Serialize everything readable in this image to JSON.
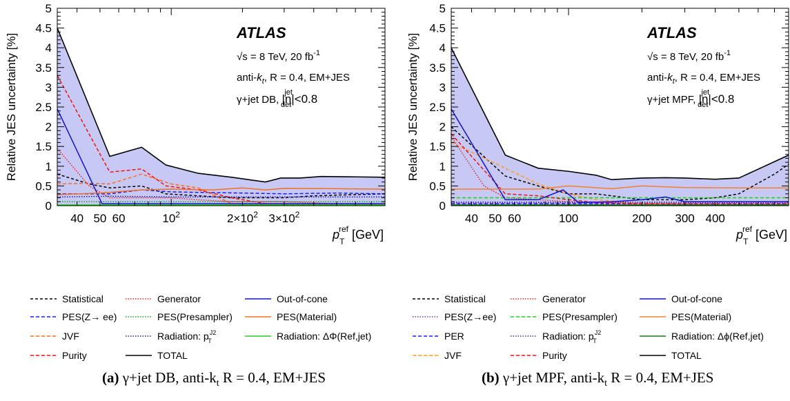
{
  "chart_data": [
    {
      "panel": "a",
      "type": "line",
      "ylabel": "Relative JES uncertainty [%]",
      "xlabel_main": "p",
      "xlabel_sub": "T",
      "xlabel_sup": "ref",
      "xlabel_unit": "[GeV]",
      "xscale": "log",
      "xlim": [
        33,
        800
      ],
      "ylim": [
        0,
        5
      ],
      "yticks": [
        "0",
        "0.5",
        "1",
        "1.5",
        "2",
        "2.5",
        "3",
        "3.5",
        "4",
        "4.5",
        "5"
      ],
      "xticks": [
        {
          "v": 40,
          "label": "40"
        },
        {
          "v": 50,
          "label": "50"
        },
        {
          "v": 60,
          "label": "60"
        },
        {
          "v": 100,
          "label": "10",
          "sup": "2"
        },
        {
          "v": 200,
          "label": "2×10",
          "sup": "2"
        },
        {
          "v": 300,
          "label": "3×10",
          "sup": "2"
        }
      ],
      "annotations": {
        "experiment": "ATLAS",
        "energy": "√s = 8 TeV, 20 fb",
        "lumi_sup": "-1",
        "jet_prefix": "anti-",
        "jet_k": "k",
        "jet_t": "t",
        "jet_rest": ", R = 0.4, EM+JES",
        "method": "γ+jet DB,",
        "eta_sym": "|η",
        "eta_sup": "jet",
        "eta_sub": "det",
        "eta_cut": "|<0.8"
      },
      "series": [
        {
          "name": "TOTAL",
          "color": "#000000",
          "dash": "",
          "fill": true,
          "x": [
            33,
            55,
            75,
            95,
            130,
            180,
            250,
            290,
            350,
            430,
            600,
            800
          ],
          "y": [
            4.5,
            1.25,
            1.48,
            1.03,
            0.82,
            0.72,
            0.6,
            0.7,
            0.7,
            0.74,
            0.73,
            0.72
          ]
        },
        {
          "name": "Statistical",
          "color": "#000000",
          "dash": "4,3",
          "x": [
            33,
            45,
            55,
            75,
            95,
            130,
            180,
            250,
            300,
            400,
            600,
            800
          ],
          "y": [
            0.8,
            0.55,
            0.45,
            0.5,
            0.3,
            0.25,
            0.2,
            0.2,
            0.2,
            0.25,
            0.28,
            0.3
          ]
        },
        {
          "name": "PES(Z→ ee)",
          "color": "#1a1aff",
          "dash": "5,3",
          "x": [
            33,
            55,
            75,
            100,
            150,
            200,
            300,
            500,
            800
          ],
          "y": [
            0.3,
            0.3,
            0.4,
            0.35,
            0.33,
            0.32,
            0.3,
            0.32,
            0.3
          ]
        },
        {
          "name": "JVF",
          "color": "#ff6a1a",
          "dash": "5,3",
          "x": [
            33,
            45,
            55,
            75,
            100,
            130,
            180,
            250,
            400,
            800
          ],
          "y": [
            0.55,
            0.57,
            0.55,
            0.8,
            0.55,
            0.45,
            0.05,
            0.03,
            0.02,
            0.02
          ]
        },
        {
          "name": "Purity",
          "color": "#ee1111",
          "dash": "5,3",
          "x": [
            33,
            55,
            75,
            95,
            130,
            180,
            250,
            400,
            800
          ],
          "y": [
            3.3,
            0.85,
            0.93,
            0.5,
            0.4,
            0.2,
            0.05,
            0.03,
            0.02
          ]
        },
        {
          "name": "Generator",
          "color": "#ee2222",
          "dash": "1.5,2",
          "x": [
            33,
            45,
            55,
            75,
            100,
            130,
            180,
            300,
            500,
            800
          ],
          "y": [
            1.45,
            0.5,
            0.2,
            0.2,
            0.2,
            0.15,
            0.1,
            0.1,
            0.05,
            0.05
          ]
        },
        {
          "name": "PES(Presampler)",
          "color": "#11aa11",
          "dash": "1.5,2",
          "x": [
            33,
            800
          ],
          "y": [
            0.1,
            0.1
          ]
        },
        {
          "name": "Radiation: p",
          "name_sup": "J2",
          "name_sub": "T",
          "color": "#1a1a99",
          "dash": "1.5,2",
          "x": [
            33,
            55,
            100,
            200,
            400,
            800
          ],
          "y": [
            0.22,
            0.24,
            0.22,
            0.22,
            0.22,
            0.22
          ]
        },
        {
          "name": "Out-of-cone",
          "color": "#1111cc",
          "dash": "",
          "x": [
            33,
            51,
            75,
            800
          ],
          "y": [
            2.45,
            0.05,
            0.05,
            0.05
          ]
        },
        {
          "name": "PES(Material)",
          "color": "#f07020",
          "dash": "",
          "x": [
            33,
            50,
            75,
            100,
            150,
            200,
            250,
            300,
            500,
            800
          ],
          "y": [
            0.28,
            0.32,
            0.4,
            0.42,
            0.4,
            0.45,
            0.4,
            0.44,
            0.43,
            0.42
          ]
        },
        {
          "name": "Radiation: ΔΦ(Ref,jet)",
          "color": "#22cc22",
          "dash": "",
          "x": [
            33,
            800
          ],
          "y": [
            0.02,
            0.02
          ]
        }
      ],
      "legend": [
        [
          "Statistical",
          "Generator",
          "Out-of-cone"
        ],
        [
          "PES(Z→ ee)",
          "PES(Presampler)",
          "PES(Material)"
        ],
        [
          "JVF",
          "Radiation: p",
          "Radiation: ΔΦ(Ref,jet)"
        ],
        [
          "Purity",
          "TOTAL"
        ]
      ],
      "caption": {
        "label": "(a)",
        "text": " γ+jet DB, anti-k",
        "sub": "t",
        "rest": " R = 0.4, EM+JES"
      }
    },
    {
      "panel": "b",
      "type": "line",
      "ylabel": "Relative JES uncertainty [%]",
      "xlabel_main": "p",
      "xlabel_sub": "T",
      "xlabel_sup": "ref",
      "xlabel_unit": "[GeV]",
      "xscale": "log",
      "xlim": [
        33,
        800
      ],
      "ylim": [
        0,
        5
      ],
      "yticks": [
        "0",
        "0.5",
        "1",
        "1.5",
        "2",
        "2.5",
        "3",
        "3.5",
        "4",
        "4.5",
        "5"
      ],
      "xticks": [
        {
          "v": 40,
          "label": "40"
        },
        {
          "v": 50,
          "label": "50"
        },
        {
          "v": 60,
          "label": "60"
        },
        {
          "v": 100,
          "label": "100"
        },
        {
          "v": 200,
          "label": "200"
        },
        {
          "v": 300,
          "label": "300"
        },
        {
          "v": 400,
          "label": "400"
        }
      ],
      "annotations": {
        "experiment": "ATLAS",
        "energy": "√s = 8 TeV, 20 fb",
        "lumi_sup": "-1",
        "jet_prefix": "anti-",
        "jet_k": "k",
        "jet_t": "t",
        "jet_rest": ", R = 0.4, EM+JES",
        "method": "γ+jet MPF,",
        "eta_sym": "|η",
        "eta_sup": "jet",
        "eta_sub": "det",
        "eta_cut": "|<0.8"
      },
      "series": [
        {
          "name": "TOTAL",
          "color": "#000000",
          "dash": "",
          "fill": true,
          "x": [
            33,
            55,
            75,
            100,
            130,
            150,
            200,
            250,
            300,
            400,
            500,
            800
          ],
          "y": [
            4.0,
            1.28,
            0.95,
            0.87,
            0.77,
            0.66,
            0.7,
            0.71,
            0.7,
            0.67,
            0.7,
            1.28
          ]
        },
        {
          "name": "Statistical",
          "color": "#000000",
          "dash": "4,3",
          "x": [
            33,
            55,
            75,
            100,
            130,
            200,
            300,
            400,
            500,
            700,
            800
          ],
          "y": [
            2.0,
            0.75,
            0.5,
            0.3,
            0.3,
            0.15,
            0.15,
            0.2,
            0.3,
            0.8,
            1.05
          ]
        },
        {
          "name": "PES(Z→ee)",
          "color": "#8833aa",
          "dash": "1.5,2",
          "x": [
            33,
            800
          ],
          "y": [
            0.07,
            0.07
          ]
        },
        {
          "name": "PER",
          "color": "#1a1aff",
          "dash": "5,3",
          "x": [
            33,
            800
          ],
          "y": [
            0.05,
            0.05
          ]
        },
        {
          "name": "JVF",
          "color": "#ff9922",
          "dash": "5,3",
          "x": [
            33,
            55,
            75,
            100,
            130,
            200,
            400,
            800
          ],
          "y": [
            1.6,
            0.95,
            0.55,
            0.3,
            0.15,
            0.05,
            0.03,
            0.02
          ]
        },
        {
          "name": "Generator",
          "color": "#ee2222",
          "dash": "1.5,2",
          "x": [
            33,
            45,
            55,
            75,
            100,
            200,
            400,
            800
          ],
          "y": [
            1.75,
            0.5,
            0.2,
            0.15,
            0.1,
            0.05,
            0.05,
            0.05
          ]
        },
        {
          "name": "PES(Presampler)",
          "color": "#22cc22",
          "dash": "5,3",
          "x": [
            33,
            800
          ],
          "y": [
            0.2,
            0.2
          ]
        },
        {
          "name": "Radiation: p",
          "name_sup": "J2",
          "name_sub": "T",
          "color": "#3333aa",
          "dash": "1.5,2",
          "x": [
            33,
            800
          ],
          "y": [
            0.09,
            0.09
          ]
        },
        {
          "name": "Purity",
          "color": "#ee1111",
          "dash": "5,3",
          "x": [
            33,
            55,
            75,
            100,
            130,
            200,
            400,
            800
          ],
          "y": [
            1.82,
            0.3,
            0.25,
            0.15,
            0.08,
            0.05,
            0.03,
            0.03
          ]
        },
        {
          "name": "Out-of-cone",
          "color": "#1111cc",
          "dash": "",
          "x": [
            33,
            55,
            75,
            95,
            110,
            150,
            200,
            250,
            300,
            400,
            800
          ],
          "y": [
            2.45,
            0.15,
            0.15,
            0.4,
            0.08,
            0.1,
            0.15,
            0.22,
            0.1,
            0.1,
            0.1
          ]
        },
        {
          "name": "PES(Material)",
          "color": "#f08030",
          "dash": "",
          "x": [
            33,
            55,
            75,
            100,
            150,
            200,
            300,
            500,
            800
          ],
          "y": [
            0.42,
            0.42,
            0.42,
            0.5,
            0.43,
            0.5,
            0.46,
            0.45,
            0.45
          ]
        },
        {
          "name": "Radiation: Δϕ(Ref,jet)",
          "color": "#117711",
          "dash": "",
          "x": [
            33,
            800
          ],
          "y": [
            0.02,
            0.02
          ]
        }
      ],
      "legend": [
        [
          "Statistical",
          "Generator",
          "Out-of-cone"
        ],
        [
          "PES(Z→ee)",
          "PES(Presampler)",
          "PES(Material)"
        ],
        [
          "PER",
          "Radiation: p",
          "Radiation: Δϕ(Ref,jet)"
        ],
        [
          "JVF",
          "Purity",
          "TOTAL"
        ]
      ],
      "caption": {
        "label": "(b)",
        "text": " γ+jet MPF, anti-k",
        "sub": "t",
        "rest": " R = 0.4, EM+JES"
      }
    }
  ]
}
